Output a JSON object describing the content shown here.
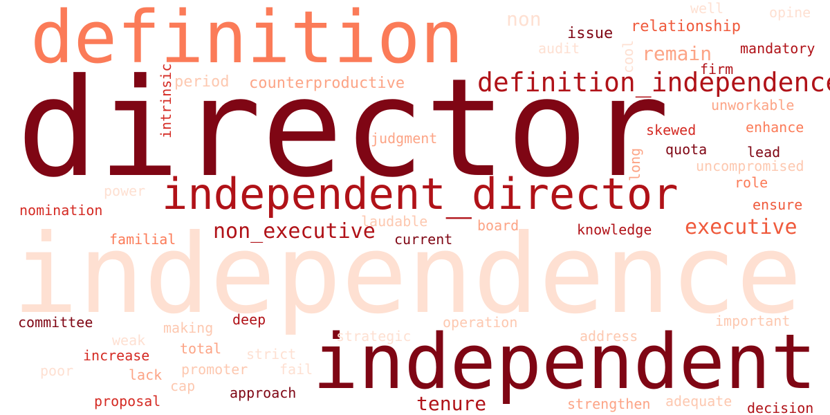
{
  "palette": {
    "darkest": "#7f0614",
    "dark": "#b01218",
    "red": "#d42a23",
    "orange_red": "#ef5a3c",
    "salmon": "#fb7b58",
    "light_salmon": "#fca486",
    "pale": "#fdc8b0",
    "palest": "#fee0d2"
  },
  "words": {
    "definition": "definition",
    "director": "director",
    "independence": "independence",
    "independent": "independent",
    "independent_director": "independent_director",
    "definition_independence": "definition_independence",
    "non_executive": "non_executive",
    "executive": "executive",
    "remain": "remain",
    "tenure": "tenure",
    "non": "non",
    "issue": "issue",
    "relationship": "relationship",
    "well": "well",
    "opine": "opine",
    "audit": "audit",
    "cool": "cool",
    "mandatory": "mandatory",
    "firm": "firm",
    "intrinsic": "intrinsic",
    "period": "period",
    "counterproductive": "counterproductive",
    "unworkable": "unworkable",
    "judgment": "judgment",
    "skewed": "skewed",
    "enhance": "enhance",
    "long": "long",
    "quota": "quota",
    "lead": "lead",
    "uncompromised": "uncompromised",
    "power": "power",
    "role": "role",
    "ensure": "ensure",
    "nomination": "nomination",
    "laudable": "laudable",
    "board": "board",
    "knowledge": "knowledge",
    "familial": "familial",
    "current": "current",
    "committee": "committee",
    "deep": "deep",
    "operation": "operation",
    "important": "important",
    "making": "making",
    "weak": "weak",
    "strategic": "strategic",
    "address": "address",
    "total": "total",
    "strict": "strict",
    "increase": "increase",
    "promoter": "promoter",
    "fail": "fail",
    "poor": "poor",
    "lack": "lack",
    "cap": "cap",
    "proposal": "proposal",
    "approach": "approach",
    "strengthen": "strengthen",
    "adequate": "adequate",
    "decision": "decision"
  }
}
